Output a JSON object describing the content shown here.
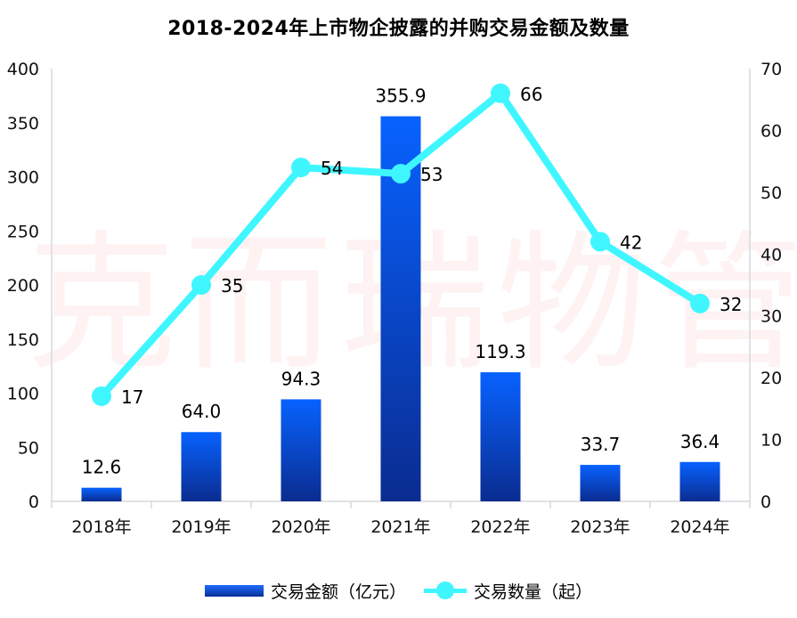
{
  "title": "2018-2024年上市物企披露的并购交易金额及数量",
  "watermark": "克而瑞物管",
  "chart_data": {
    "type": "bar",
    "title": "2018-2024年上市物企披露的并购交易金额及数量",
    "categories": [
      "2018年",
      "2019年",
      "2020年",
      "2021年",
      "2022年",
      "2023年",
      "2024年"
    ],
    "series": [
      {
        "name": "交易金额（亿元）",
        "type": "bar",
        "axis": "left",
        "values": [
          12.6,
          64.0,
          94.3,
          355.9,
          119.3,
          33.7,
          36.4
        ],
        "labels": [
          "12.6",
          "64.0",
          "94.3",
          "355.9",
          "119.3",
          "33.7",
          "36.4"
        ],
        "color": "#0a56f5"
      },
      {
        "name": "交易数量（起）",
        "type": "line",
        "axis": "right",
        "values": [
          17,
          35,
          54,
          53,
          66,
          42,
          32
        ],
        "labels": [
          "17",
          "35",
          "54",
          "53",
          "66",
          "42",
          "32"
        ],
        "color": "#3ff6ff"
      }
    ],
    "y_left": {
      "range": [
        0,
        400
      ],
      "ticks": [
        "0",
        "50",
        "100",
        "150",
        "200",
        "250",
        "300",
        "350",
        "400"
      ]
    },
    "y_right": {
      "range": [
        0,
        70
      ],
      "ticks": [
        "0",
        "10",
        "20",
        "30",
        "40",
        "50",
        "60",
        "70"
      ]
    },
    "grid": false,
    "legend_position": "bottom"
  },
  "legend": [
    "交易金额（亿元）",
    "交易数量（起）"
  ]
}
